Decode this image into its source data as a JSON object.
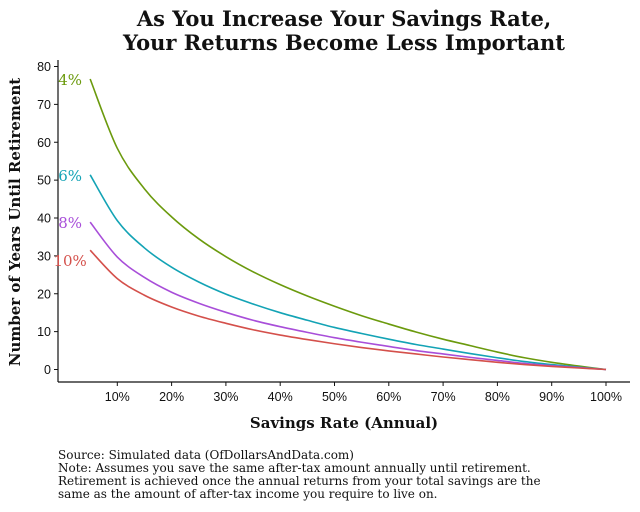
{
  "chart_data": {
    "type": "line",
    "title": "As You Increase Your Savings Rate,",
    "subtitle": "Your Returns Become Less Important",
    "xlabel": "Savings Rate (Annual)",
    "ylabel": "Number of Years Until Retirement",
    "xlim": [
      0,
      100
    ],
    "ylim": [
      0,
      80
    ],
    "grid": false,
    "legend": "inline labels at start of each line",
    "x_ticks": [
      {
        "v": 10,
        "label": "10%"
      },
      {
        "v": 20,
        "label": "20%"
      },
      {
        "v": 30,
        "label": "30%"
      },
      {
        "v": 40,
        "label": "40%"
      },
      {
        "v": 50,
        "label": "50%"
      },
      {
        "v": 60,
        "label": "60%"
      },
      {
        "v": 70,
        "label": "70%"
      },
      {
        "v": 80,
        "label": "80%"
      },
      {
        "v": 90,
        "label": "90%"
      },
      {
        "v": 100,
        "label": "100%"
      }
    ],
    "y_ticks": [
      {
        "v": 0,
        "label": "0"
      },
      {
        "v": 10,
        "label": "10"
      },
      {
        "v": 20,
        "label": "20"
      },
      {
        "v": 30,
        "label": "30"
      },
      {
        "v": 40,
        "label": "40"
      },
      {
        "v": 50,
        "label": "50"
      },
      {
        "v": 60,
        "label": "60"
      },
      {
        "v": 70,
        "label": "70"
      },
      {
        "v": 80,
        "label": "80"
      }
    ],
    "x": [
      5,
      10,
      15,
      20,
      25,
      30,
      35,
      40,
      45,
      50,
      55,
      60,
      65,
      70,
      75,
      80,
      85,
      90,
      95,
      100
    ],
    "series": [
      {
        "name": "4%",
        "color": "#6b9a0d",
        "values": [
          76.7,
          58.4,
          47.7,
          40.3,
          34.5,
          29.8,
          25.8,
          22.4,
          19.4,
          16.7,
          14.2,
          12.0,
          9.9,
          8.0,
          6.3,
          4.6,
          3.1,
          1.9,
          0.9,
          0
        ]
      },
      {
        "name": "6%",
        "color": "#13a3b5",
        "values": [
          51.4,
          39.3,
          32.1,
          27.0,
          23.1,
          19.9,
          17.3,
          15.0,
          13.0,
          11.1,
          9.5,
          8.0,
          6.6,
          5.4,
          4.2,
          3.1,
          2.1,
          1.3,
          0.6,
          0
        ]
      },
      {
        "name": "8%",
        "color": "#a84ed9",
        "values": [
          38.9,
          29.7,
          24.3,
          20.4,
          17.5,
          15.1,
          13.0,
          11.3,
          9.8,
          8.4,
          7.2,
          6.1,
          5.0,
          4.1,
          3.2,
          2.4,
          1.6,
          1.0,
          0.5,
          0
        ]
      },
      {
        "name": "10%",
        "color": "#d4504b",
        "values": [
          31.5,
          24.0,
          19.6,
          16.5,
          14.1,
          12.2,
          10.5,
          9.1,
          7.9,
          6.8,
          5.8,
          4.9,
          4.1,
          3.3,
          2.6,
          1.9,
          1.3,
          0.8,
          0.4,
          0
        ]
      }
    ]
  },
  "footer": {
    "source": "Source: Simulated data (OfDollarsAndData.com)",
    "note_1": "Note: Assumes you save the same after-tax amount annually until retirement.",
    "note_2": "Retirement is achieved once the annual returns from your total savings are the",
    "note_3": "same as the amount of after-tax income you require to live on."
  }
}
